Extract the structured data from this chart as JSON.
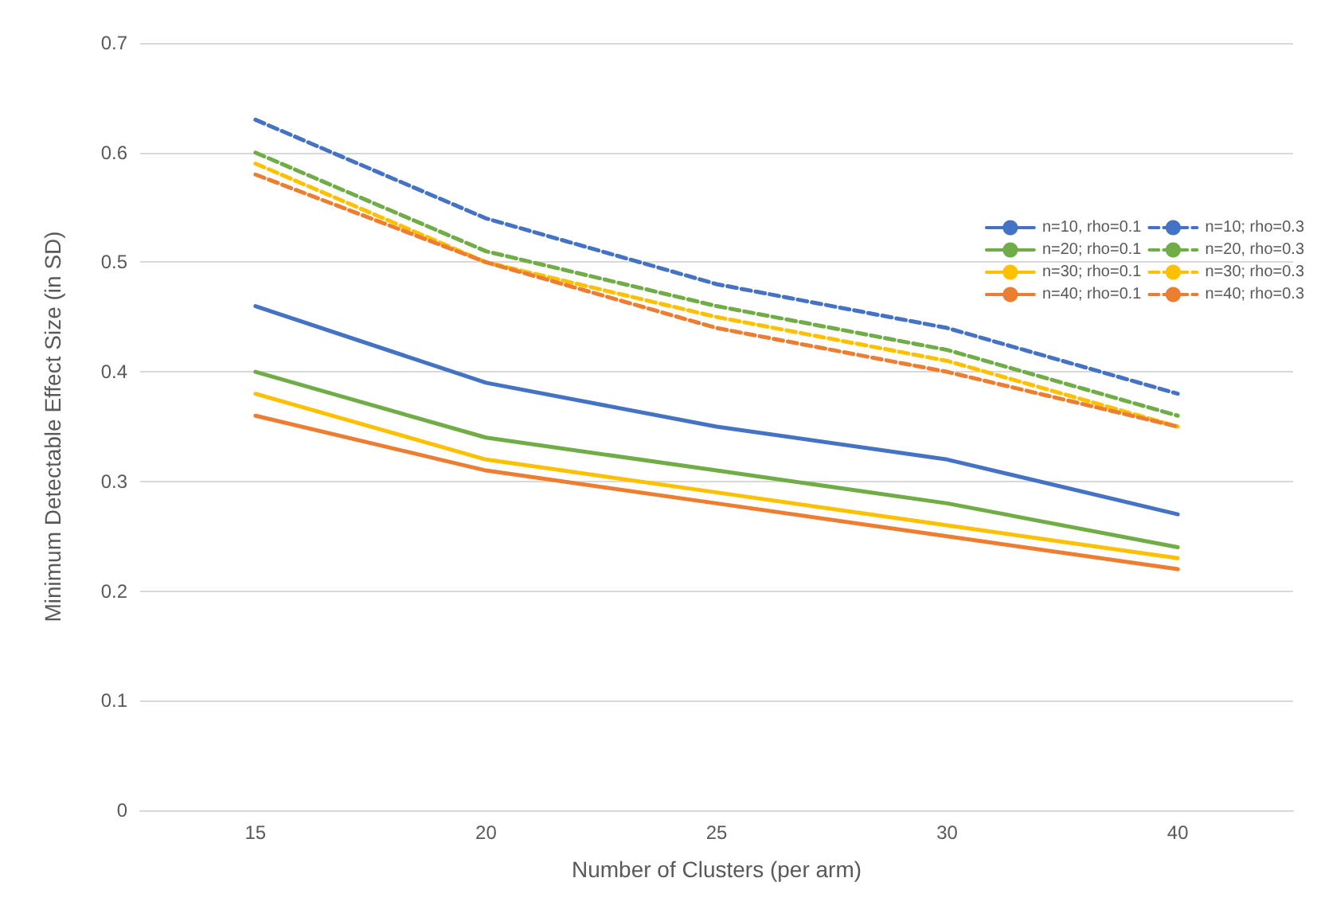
{
  "chart_data": {
    "type": "line",
    "xlabel": "Number of Clusters (per arm)",
    "ylabel": "Minimum Detectable Effect Size (in SD)",
    "categories": [
      "15",
      "20",
      "25",
      "30",
      "40"
    ],
    "ylim": [
      0,
      0.7
    ],
    "yticks": [
      0,
      0.1,
      0.2,
      0.3,
      0.4,
      0.5,
      0.6,
      0.7
    ],
    "grid": "y",
    "legend": "top right",
    "marker": "none",
    "series": [
      {
        "name": "n=10, rho=0.1",
        "color": "#4472c4",
        "line_style": "solid",
        "values": [
          0.46,
          0.39,
          0.35,
          0.32,
          0.27
        ]
      },
      {
        "name": "n=10; rho=0.3",
        "color": "#4472c4",
        "line_style": "dashed",
        "values": [
          0.63,
          0.54,
          0.48,
          0.44,
          0.38
        ]
      },
      {
        "name": "n=20; rho=0.1",
        "color": "#70ad47",
        "line_style": "solid",
        "values": [
          0.4,
          0.34,
          0.31,
          0.28,
          0.24
        ]
      },
      {
        "name": "n=20, rho=0.3",
        "color": "#70ad47",
        "line_style": "dashed",
        "values": [
          0.6,
          0.51,
          0.46,
          0.42,
          0.36
        ]
      },
      {
        "name": "n=30; rho=0.1",
        "color": "#ffc000",
        "line_style": "solid",
        "values": [
          0.38,
          0.32,
          0.29,
          0.26,
          0.23
        ]
      },
      {
        "name": "n=30; rho=0.3",
        "color": "#ffc000",
        "line_style": "dashed",
        "values": [
          0.59,
          0.5,
          0.45,
          0.41,
          0.35
        ]
      },
      {
        "name": "n=40; rho=0.1",
        "color": "#ed7d31",
        "line_style": "solid",
        "values": [
          0.36,
          0.31,
          0.28,
          0.25,
          0.22
        ]
      },
      {
        "name": "n=40; rho=0.3",
        "color": "#ed7d31",
        "line_style": "dashed",
        "values": [
          0.58,
          0.5,
          0.44,
          0.4,
          0.35
        ]
      }
    ]
  }
}
